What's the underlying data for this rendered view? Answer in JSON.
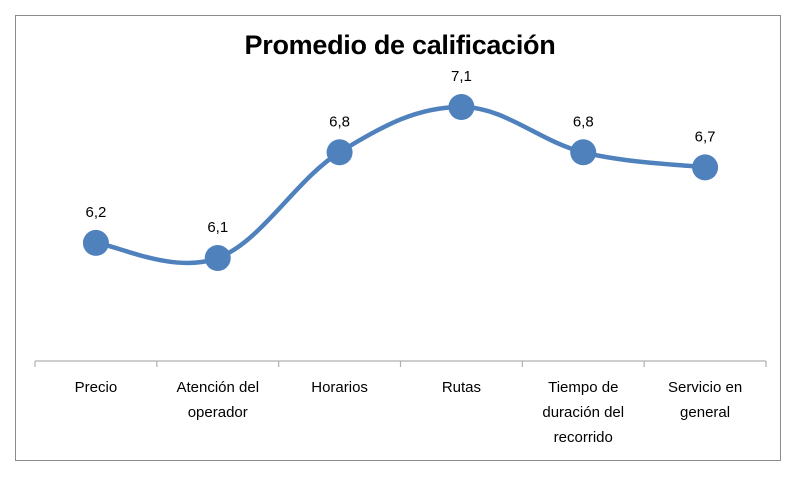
{
  "chart_data": {
    "type": "line",
    "title": "Promedio de calificación",
    "categories": [
      [
        "Precio"
      ],
      [
        "Atención del",
        "operador"
      ],
      [
        "Horarios"
      ],
      [
        "Rutas"
      ],
      [
        "Tiempo de",
        "duración del",
        "recorrido"
      ],
      [
        "Servicio en",
        "general"
      ]
    ],
    "series": [
      {
        "values": [
          6.2,
          6.1,
          6.8,
          7.1,
          6.8,
          6.7
        ]
      }
    ],
    "data_labels": [
      "6,2",
      "6,1",
      "6,8",
      "7,1",
      "6,8",
      "6,7"
    ],
    "line_style": "smooth",
    "colors": {
      "series": "#4f81bd",
      "axis": "#b0b0b0",
      "frame": "#8c8c8c"
    },
    "grid": false,
    "legend": "none",
    "y_axis_visible": false
  }
}
